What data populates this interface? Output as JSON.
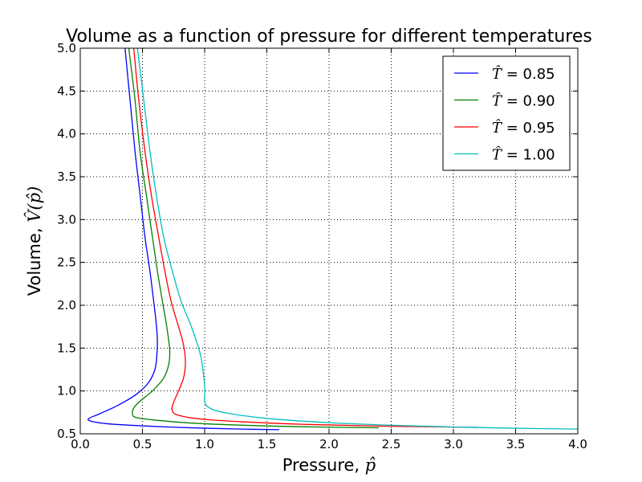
{
  "chart_data": {
    "type": "line",
    "title": "Volume as a function of pressure for different temperatures",
    "xlabel": {
      "text": "Pressure, ",
      "math": "p̂"
    },
    "ylabel": {
      "text": "Volume, ",
      "math": "V̂(p̂)"
    },
    "xlim": [
      0.0,
      4.0
    ],
    "ylim": [
      0.5,
      5.0
    ],
    "xticks": [
      "0.0",
      "0.5",
      "1.0",
      "1.5",
      "2.0",
      "2.5",
      "3.0",
      "3.5",
      "4.0"
    ],
    "yticks": [
      "0.5",
      "1.0",
      "1.5",
      "2.0",
      "2.5",
      "3.0",
      "3.5",
      "4.0",
      "4.5",
      "5.0"
    ],
    "grid": true,
    "legend_position": "top-right",
    "series": [
      {
        "label_symbol": "T̂",
        "label_value": " = 0.85",
        "color": "#0000ff",
        "T": 0.85,
        "points": [
          [
            0.36,
            5.0
          ],
          [
            0.4,
            4.4
          ],
          [
            0.44,
            3.8
          ],
          [
            0.48,
            3.3
          ],
          [
            0.52,
            2.8
          ],
          [
            0.56,
            2.4
          ],
          [
            0.59,
            2.05
          ],
          [
            0.61,
            1.8
          ],
          [
            0.62,
            1.6
          ],
          [
            0.615,
            1.4
          ],
          [
            0.6,
            1.25
          ],
          [
            0.55,
            1.1
          ],
          [
            0.45,
            0.96
          ],
          [
            0.3,
            0.83
          ],
          [
            0.15,
            0.73
          ],
          [
            0.07,
            0.68
          ],
          [
            0.08,
            0.65
          ],
          [
            0.2,
            0.62
          ],
          [
            0.4,
            0.6
          ],
          [
            0.7,
            0.58
          ],
          [
            1.0,
            0.565
          ],
          [
            1.3,
            0.555
          ],
          [
            1.6,
            0.548
          ]
        ]
      },
      {
        "label_symbol": "T̂",
        "label_value": " = 0.90",
        "color": "#008000",
        "T": 0.9,
        "points": [
          [
            0.39,
            5.0
          ],
          [
            0.44,
            4.4
          ],
          [
            0.48,
            3.8
          ],
          [
            0.53,
            3.3
          ],
          [
            0.58,
            2.8
          ],
          [
            0.62,
            2.4
          ],
          [
            0.66,
            2.05
          ],
          [
            0.69,
            1.8
          ],
          [
            0.71,
            1.6
          ],
          [
            0.72,
            1.45
          ],
          [
            0.71,
            1.3
          ],
          [
            0.67,
            1.15
          ],
          [
            0.58,
            1.0
          ],
          [
            0.48,
            0.88
          ],
          [
            0.43,
            0.8
          ],
          [
            0.42,
            0.73
          ],
          [
            0.45,
            0.69
          ],
          [
            0.6,
            0.66
          ],
          [
            0.9,
            0.625
          ],
          [
            1.3,
            0.6
          ],
          [
            1.7,
            0.585
          ],
          [
            2.1,
            0.575
          ],
          [
            2.4,
            0.57
          ]
        ]
      },
      {
        "label_symbol": "T̂",
        "label_value": " = 0.95",
        "color": "#ff0000",
        "T": 0.95,
        "points": [
          [
            0.43,
            5.0
          ],
          [
            0.47,
            4.4
          ],
          [
            0.52,
            3.8
          ],
          [
            0.57,
            3.3
          ],
          [
            0.63,
            2.8
          ],
          [
            0.68,
            2.4
          ],
          [
            0.73,
            2.05
          ],
          [
            0.78,
            1.8
          ],
          [
            0.82,
            1.6
          ],
          [
            0.84,
            1.45
          ],
          [
            0.845,
            1.3
          ],
          [
            0.83,
            1.15
          ],
          [
            0.79,
            1.0
          ],
          [
            0.76,
            0.9
          ],
          [
            0.74,
            0.82
          ],
          [
            0.74,
            0.77
          ],
          [
            0.78,
            0.72
          ],
          [
            0.95,
            0.675
          ],
          [
            1.3,
            0.64
          ],
          [
            1.8,
            0.61
          ],
          [
            2.4,
            0.59
          ],
          [
            3.2,
            0.575
          ]
        ]
      },
      {
        "label_symbol": "T̂",
        "label_value": " = 1.00",
        "color": "#00bfbf",
        "T": 1.0,
        "points": [
          [
            0.46,
            5.0
          ],
          [
            0.51,
            4.4
          ],
          [
            0.56,
            3.8
          ],
          [
            0.61,
            3.3
          ],
          [
            0.67,
            2.8
          ],
          [
            0.74,
            2.4
          ],
          [
            0.81,
            2.05
          ],
          [
            0.88,
            1.8
          ],
          [
            0.93,
            1.6
          ],
          [
            0.97,
            1.4
          ],
          [
            0.99,
            1.2
          ],
          [
            1.0,
            1.05
          ],
          [
            1.0,
            0.95
          ],
          [
            1.0,
            0.88
          ],
          [
            1.03,
            0.81
          ],
          [
            1.15,
            0.75
          ],
          [
            1.5,
            0.68
          ],
          [
            2.0,
            0.63
          ],
          [
            2.5,
            0.6
          ],
          [
            3.0,
            0.58
          ],
          [
            3.5,
            0.565
          ],
          [
            4.0,
            0.555
          ]
        ]
      }
    ]
  }
}
